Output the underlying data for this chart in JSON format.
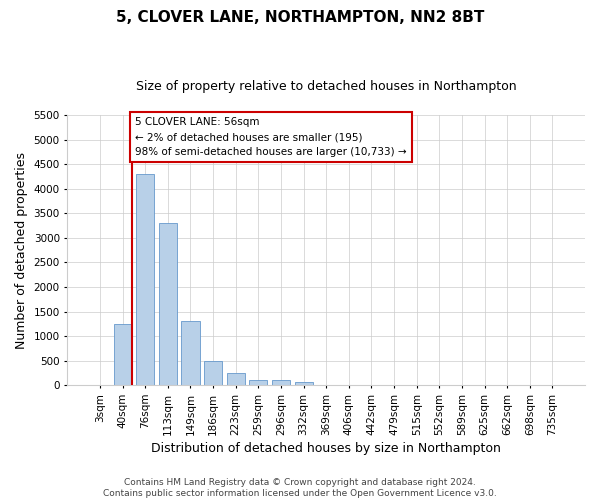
{
  "title": "5, CLOVER LANE, NORTHAMPTON, NN2 8BT",
  "subtitle": "Size of property relative to detached houses in Northampton",
  "xlabel": "Distribution of detached houses by size in Northampton",
  "ylabel": "Number of detached properties",
  "categories": [
    "3sqm",
    "40sqm",
    "76sqm",
    "113sqm",
    "149sqm",
    "186sqm",
    "223sqm",
    "259sqm",
    "296sqm",
    "332sqm",
    "369sqm",
    "406sqm",
    "442sqm",
    "479sqm",
    "515sqm",
    "552sqm",
    "589sqm",
    "625sqm",
    "662sqm",
    "698sqm",
    "735sqm"
  ],
  "values": [
    0,
    1250,
    4300,
    3300,
    1300,
    500,
    250,
    100,
    100,
    60,
    10,
    5,
    0,
    0,
    0,
    0,
    0,
    0,
    0,
    0,
    0
  ],
  "bar_color": "#b8d0e8",
  "bar_edge_color": "#6699cc",
  "vline_x_index": 1,
  "vline_color": "#cc0000",
  "annotation_text": "5 CLOVER LANE: 56sqm\n← 2% of detached houses are smaller (195)\n98% of semi-detached houses are larger (10,733) →",
  "annotation_box_color": "#ffffff",
  "annotation_box_edge_color": "#cc0000",
  "ylim": [
    0,
    5500
  ],
  "yticks": [
    0,
    500,
    1000,
    1500,
    2000,
    2500,
    3000,
    3500,
    4000,
    4500,
    5000,
    5500
  ],
  "footer_line1": "Contains HM Land Registry data © Crown copyright and database right 2024.",
  "footer_line2": "Contains public sector information licensed under the Open Government Licence v3.0.",
  "bg_color": "#ffffff",
  "grid_color": "#cccccc",
  "title_fontsize": 11,
  "subtitle_fontsize": 9,
  "axis_label_fontsize": 9,
  "tick_fontsize": 7.5,
  "footer_fontsize": 6.5
}
